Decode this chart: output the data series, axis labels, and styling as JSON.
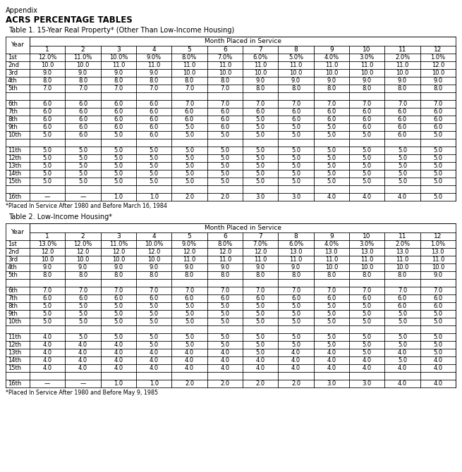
{
  "appendix_text": "Appendix",
  "title_text": "ACRS PERCENTAGE TABLES",
  "table1_title": "Table 1. 15-Year Real Property* (Other Than Low-Income Housing)",
  "table1_footnote": "*Placed In Service After 1980 and Before March 16, 1984",
  "table2_title": "Table 2. Low-Income Housing*",
  "table2_footnote": "*Placed In Service After 1980 and Before May 9, 1985",
  "month_header": "Month Placed in Service",
  "year_header": "Year",
  "col_headers": [
    "1",
    "2",
    "3",
    "4",
    "5",
    "6",
    "7",
    "8",
    "9",
    "10",
    "11",
    "12"
  ],
  "table1_years": [
    "1st",
    "2nd",
    "3rd",
    "4th",
    "5th",
    "",
    "6th",
    "7th",
    "8th",
    "9th",
    "10th",
    "",
    "11th",
    "12th",
    "13th",
    "14th",
    "15th",
    "",
    "16th"
  ],
  "table1_data": [
    [
      "12.0%",
      "11.0%",
      "10.0%",
      "9.0%",
      "8.0%",
      "7.0%",
      "6.0%",
      "5.0%",
      "4.0%",
      "3.0%",
      "2.0%",
      "1.0%"
    ],
    [
      "10.0",
      "10.0",
      "11.0",
      "11.0",
      "11.0",
      "11.0",
      "11.0",
      "11.0",
      "11.0",
      "11.0",
      "11.0",
      "12.0"
    ],
    [
      "9.0",
      "9.0",
      "9.0",
      "9.0",
      "10.0",
      "10.0",
      "10.0",
      "10.0",
      "10.0",
      "10.0",
      "10.0",
      "10.0"
    ],
    [
      "8.0",
      "8.0",
      "8.0",
      "8.0",
      "8.0",
      "8.0",
      "9.0",
      "9.0",
      "9.0",
      "9.0",
      "9.0",
      "9.0"
    ],
    [
      "7.0",
      "7.0",
      "7.0",
      "7.0",
      "7.0",
      "7.0",
      "8.0",
      "8.0",
      "8.0",
      "8.0",
      "8.0",
      "8.0"
    ],
    [
      "",
      "",
      "",
      "",
      "",
      "",
      "",
      "",
      "",
      "",
      "",
      ""
    ],
    [
      "6.0",
      "6.0",
      "6.0",
      "6.0",
      "7.0",
      "7.0",
      "7.0",
      "7.0",
      "7.0",
      "7.0",
      "7.0",
      "7.0"
    ],
    [
      "6.0",
      "6.0",
      "6.0",
      "6.0",
      "6.0",
      "6.0",
      "6.0",
      "6.0",
      "6.0",
      "6.0",
      "6.0",
      "6.0"
    ],
    [
      "6.0",
      "6.0",
      "6.0",
      "6.0",
      "6.0",
      "6.0",
      "5.0",
      "6.0",
      "6.0",
      "6.0",
      "6.0",
      "6.0"
    ],
    [
      "6.0",
      "6.0",
      "6.0",
      "6.0",
      "5.0",
      "6.0",
      "5.0",
      "5.0",
      "5.0",
      "6.0",
      "6.0",
      "6.0"
    ],
    [
      "5.0",
      "6.0",
      "5.0",
      "6.0",
      "5.0",
      "5.0",
      "5.0",
      "5.0",
      "5.0",
      "5.0",
      "6.0",
      "5.0"
    ],
    [
      "",
      "",
      "",
      "",
      "",
      "",
      "",
      "",
      "",
      "",
      "",
      ""
    ],
    [
      "5.0",
      "5.0",
      "5.0",
      "5.0",
      "5.0",
      "5.0",
      "5.0",
      "5.0",
      "5.0",
      "5.0",
      "5.0",
      "5.0"
    ],
    [
      "5.0",
      "5.0",
      "5.0",
      "5.0",
      "5.0",
      "5.0",
      "5.0",
      "5.0",
      "5.0",
      "5.0",
      "5.0",
      "5.0"
    ],
    [
      "5.0",
      "5.0",
      "5.0",
      "5.0",
      "5.0",
      "5.0",
      "5.0",
      "5.0",
      "5.0",
      "5.0",
      "5.0",
      "5.0"
    ],
    [
      "5.0",
      "5.0",
      "5.0",
      "5.0",
      "5.0",
      "5.0",
      "5.0",
      "5.0",
      "5.0",
      "5.0",
      "5.0",
      "5.0"
    ],
    [
      "5.0",
      "5.0",
      "5.0",
      "5.0",
      "5.0",
      "5.0",
      "5.0",
      "5.0",
      "5.0",
      "5.0",
      "5.0",
      "5.0"
    ],
    [
      "",
      "",
      "",
      "",
      "",
      "",
      "",
      "",
      "",
      "",
      "",
      ""
    ],
    [
      "—",
      "—",
      "1.0",
      "1.0",
      "2.0",
      "2.0",
      "3.0",
      "3.0",
      "4.0",
      "4.0",
      "4.0",
      "5.0"
    ]
  ],
  "table2_years": [
    "1st",
    "2nd",
    "3rd",
    "4th",
    "5th",
    "",
    "6th",
    "7th",
    "8th",
    "9th",
    "10th",
    "",
    "11th",
    "12th",
    "13th",
    "14th",
    "15th",
    "",
    "16th"
  ],
  "table2_data": [
    [
      "13.0%",
      "12.0%",
      "11.0%",
      "10.0%",
      "9.0%",
      "8.0%",
      "7.0%",
      "6.0%",
      "4.0%",
      "3.0%",
      "2.0%",
      "1.0%"
    ],
    [
      "12.0",
      "12.0",
      "12.0",
      "12.0",
      "12.0",
      "12.0",
      "12.0",
      "13.0",
      "13.0",
      "13.0",
      "13.0",
      "13.0"
    ],
    [
      "10.0",
      "10.0",
      "10.0",
      "10.0",
      "11.0",
      "11.0",
      "11.0",
      "11.0",
      "11.0",
      "11.0",
      "11.0",
      "11.0"
    ],
    [
      "9.0",
      "9.0",
      "9.0",
      "9.0",
      "9.0",
      "9.0",
      "9.0",
      "9.0",
      "10.0",
      "10.0",
      "10.0",
      "10.0"
    ],
    [
      "8.0",
      "8.0",
      "8.0",
      "8.0",
      "8.0",
      "8.0",
      "8.0",
      "8.0",
      "8.0",
      "8.0",
      "8.0",
      "9.0"
    ],
    [
      "",
      "",
      "",
      "",
      "",
      "",
      "",
      "",
      "",
      "",
      "",
      ""
    ],
    [
      "7.0",
      "7.0",
      "7.0",
      "7.0",
      "7.0",
      "7.0",
      "7.0",
      "7.0",
      "7.0",
      "7.0",
      "7.0",
      "7.0"
    ],
    [
      "6.0",
      "6.0",
      "6.0",
      "6.0",
      "6.0",
      "6.0",
      "6.0",
      "6.0",
      "6.0",
      "6.0",
      "6.0",
      "6.0"
    ],
    [
      "5.0",
      "5.0",
      "5.0",
      "5.0",
      "5.0",
      "5.0",
      "5.0",
      "5.0",
      "5.0",
      "5.0",
      "6.0",
      "6.0"
    ],
    [
      "5.0",
      "5.0",
      "5.0",
      "5.0",
      "5.0",
      "5.0",
      "5.0",
      "5.0",
      "5.0",
      "5.0",
      "5.0",
      "5.0"
    ],
    [
      "5.0",
      "5.0",
      "5.0",
      "5.0",
      "5.0",
      "5.0",
      "5.0",
      "5.0",
      "5.0",
      "5.0",
      "5.0",
      "5.0"
    ],
    [
      "",
      "",
      "",
      "",
      "",
      "",
      "",
      "",
      "",
      "",
      "",
      ""
    ],
    [
      "4.0",
      "5.0",
      "5.0",
      "5.0",
      "5.0",
      "5.0",
      "5.0",
      "5.0",
      "5.0",
      "5.0",
      "5.0",
      "5.0"
    ],
    [
      "4.0",
      "4.0",
      "4.0",
      "5.0",
      "5.0",
      "5.0",
      "5.0",
      "5.0",
      "5.0",
      "5.0",
      "5.0",
      "5.0"
    ],
    [
      "4.0",
      "4.0",
      "4.0",
      "4.0",
      "4.0",
      "4.0",
      "5.0",
      "4.0",
      "4.0",
      "5.0",
      "4.0",
      "5.0"
    ],
    [
      "4.0",
      "4.0",
      "4.0",
      "4.0",
      "4.0",
      "4.0",
      "4.0",
      "4.0",
      "4.0",
      "4.0",
      "5.0",
      "4.0"
    ],
    [
      "4.0",
      "4.0",
      "4.0",
      "4.0",
      "4.0",
      "4.0",
      "4.0",
      "4.0",
      "4.0",
      "4.0",
      "4.0",
      "4.0"
    ],
    [
      "",
      "",
      "",
      "",
      "",
      "",
      "",
      "",
      "",
      "",
      "",
      ""
    ],
    [
      "—",
      "—",
      "1.0",
      "1.0",
      "2.0",
      "2.0",
      "2.0",
      "2.0",
      "3.0",
      "3.0",
      "4.0",
      "4.0"
    ]
  ],
  "bg_color": "#ffffff",
  "line_color": "#000000",
  "text_color": "#000000",
  "header_bg": "#e8e8e8"
}
